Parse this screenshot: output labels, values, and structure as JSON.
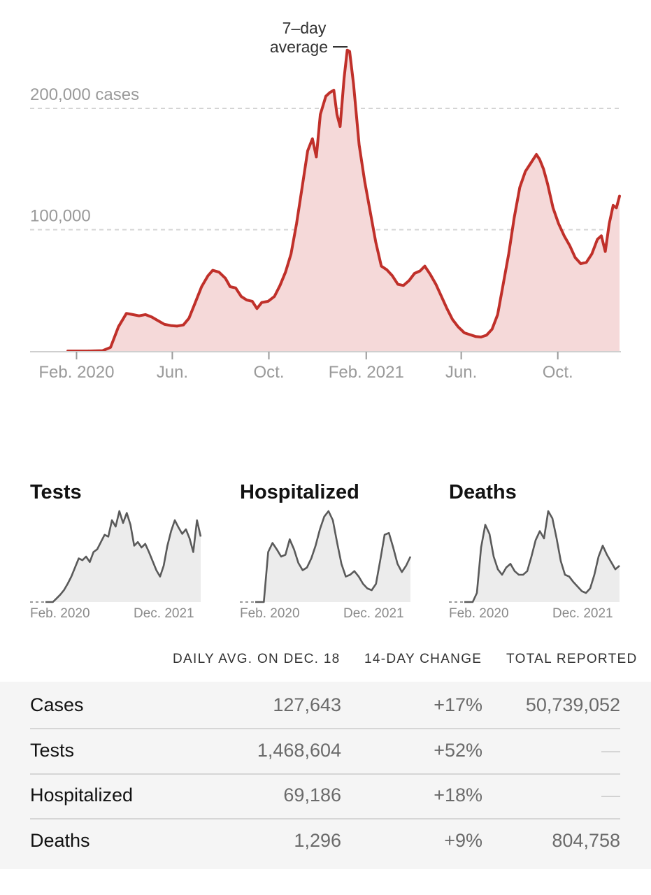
{
  "colors": {
    "cases_line": "#c0302a",
    "cases_fill": "#f5d9d9",
    "small_line": "#5a5a5a",
    "small_fill": "#ececec",
    "table_bg": "#f5f5f5",
    "axis_label": "#9a9a9a"
  },
  "chart_data": [
    {
      "type": "area",
      "title": "",
      "xlabel": "",
      "ylabel": "",
      "ylim": [
        0,
        250000
      ],
      "y_ticks": [
        {
          "value": 200000,
          "label": "200,000 cases"
        },
        {
          "value": 100000,
          "label": "100,000"
        }
      ],
      "x_ticks": [
        {
          "date": "2020-02-01",
          "label": "Feb. 2020"
        },
        {
          "date": "2020-06-01",
          "label": "Jun."
        },
        {
          "date": "2020-10-01",
          "label": "Oct."
        },
        {
          "date": "2021-02-01",
          "label": "Feb. 2021"
        },
        {
          "date": "2021-06-01",
          "label": "Jun."
        },
        {
          "date": "2021-10-01",
          "label": "Oct."
        }
      ],
      "annotation": {
        "line1": "7–day",
        "line2": "average",
        "date": "2021-01-11"
      },
      "grid": true,
      "x_range": [
        "2020-01-21",
        "2021-12-18"
      ],
      "series": [
        {
          "name": "7-day average",
          "points": [
            [
              "2020-01-21",
              0
            ],
            [
              "2020-02-15",
              0
            ],
            [
              "2020-03-05",
              300
            ],
            [
              "2020-03-15",
              3000
            ],
            [
              "2020-03-25",
              20000
            ],
            [
              "2020-04-04",
              31000
            ],
            [
              "2020-04-12",
              30000
            ],
            [
              "2020-04-20",
              29000
            ],
            [
              "2020-04-28",
              30000
            ],
            [
              "2020-05-06",
              28000
            ],
            [
              "2020-05-14",
              25000
            ],
            [
              "2020-05-22",
              22000
            ],
            [
              "2020-05-30",
              21000
            ],
            [
              "2020-06-07",
              20500
            ],
            [
              "2020-06-15",
              21500
            ],
            [
              "2020-06-22",
              27000
            ],
            [
              "2020-06-30",
              40000
            ],
            [
              "2020-07-08",
              53000
            ],
            [
              "2020-07-16",
              62000
            ],
            [
              "2020-07-22",
              66500
            ],
            [
              "2020-07-30",
              65000
            ],
            [
              "2020-08-07",
              60000
            ],
            [
              "2020-08-13",
              53000
            ],
            [
              "2020-08-20",
              52000
            ],
            [
              "2020-08-27",
              45000
            ],
            [
              "2020-09-03",
              42000
            ],
            [
              "2020-09-10",
              41000
            ],
            [
              "2020-09-16",
              35000
            ],
            [
              "2020-09-22",
              40000
            ],
            [
              "2020-09-30",
              41000
            ],
            [
              "2020-10-08",
              45000
            ],
            [
              "2020-10-15",
              54000
            ],
            [
              "2020-10-22",
              65000
            ],
            [
              "2020-10-29",
              80000
            ],
            [
              "2020-11-05",
              105000
            ],
            [
              "2020-11-12",
              135000
            ],
            [
              "2020-11-19",
              165000
            ],
            [
              "2020-11-25",
              175000
            ],
            [
              "2020-11-30",
              160000
            ],
            [
              "2020-12-05",
              195000
            ],
            [
              "2020-12-12",
              210000
            ],
            [
              "2020-12-17",
              213000
            ],
            [
              "2020-12-22",
              215000
            ],
            [
              "2020-12-26",
              195000
            ],
            [
              "2020-12-30",
              185000
            ],
            [
              "2021-01-04",
              225000
            ],
            [
              "2021-01-08",
              248000
            ],
            [
              "2021-01-11",
              247000
            ],
            [
              "2021-01-16",
              220000
            ],
            [
              "2021-01-23",
              170000
            ],
            [
              "2021-01-30",
              140000
            ],
            [
              "2021-02-06",
              115000
            ],
            [
              "2021-02-13",
              90000
            ],
            [
              "2021-02-20",
              70000
            ],
            [
              "2021-02-27",
              67000
            ],
            [
              "2021-03-06",
              62000
            ],
            [
              "2021-03-13",
              55000
            ],
            [
              "2021-03-20",
              54000
            ],
            [
              "2021-03-27",
              58000
            ],
            [
              "2021-04-03",
              64000
            ],
            [
              "2021-04-10",
              66000
            ],
            [
              "2021-04-16",
              70000
            ],
            [
              "2021-04-23",
              63000
            ],
            [
              "2021-04-30",
              55000
            ],
            [
              "2021-05-07",
              45000
            ],
            [
              "2021-05-14",
              35000
            ],
            [
              "2021-05-21",
              26000
            ],
            [
              "2021-05-28",
              20000
            ],
            [
              "2021-06-05",
              15000
            ],
            [
              "2021-06-12",
              13500
            ],
            [
              "2021-06-19",
              12000
            ],
            [
              "2021-06-26",
              11500
            ],
            [
              "2021-07-03",
              13000
            ],
            [
              "2021-07-10",
              18000
            ],
            [
              "2021-07-17",
              30000
            ],
            [
              "2021-07-24",
              55000
            ],
            [
              "2021-07-31",
              80000
            ],
            [
              "2021-08-07",
              110000
            ],
            [
              "2021-08-14",
              135000
            ],
            [
              "2021-08-21",
              148000
            ],
            [
              "2021-08-28",
              155000
            ],
            [
              "2021-09-04",
              162000
            ],
            [
              "2021-09-08",
              158000
            ],
            [
              "2021-09-13",
              150000
            ],
            [
              "2021-09-18",
              138000
            ],
            [
              "2021-09-25",
              118000
            ],
            [
              "2021-10-02",
              105000
            ],
            [
              "2021-10-09",
              95000
            ],
            [
              "2021-10-16",
              87000
            ],
            [
              "2021-10-23",
              77000
            ],
            [
              "2021-10-30",
              72000
            ],
            [
              "2021-11-06",
              73000
            ],
            [
              "2021-11-13",
              80000
            ],
            [
              "2021-11-20",
              92000
            ],
            [
              "2021-11-25",
              95000
            ],
            [
              "2021-11-30",
              82000
            ],
            [
              "2021-12-05",
              105000
            ],
            [
              "2021-12-10",
              120000
            ],
            [
              "2021-12-14",
              118000
            ],
            [
              "2021-12-18",
              127643
            ]
          ]
        }
      ]
    },
    {
      "type": "area",
      "title": "Tests",
      "x_ticks": [
        "Feb. 2020",
        "Dec. 2021"
      ],
      "series": [
        {
          "values": [
            0,
            0,
            0,
            0.04,
            0.08,
            0.13,
            0.2,
            0.28,
            0.38,
            0.48,
            0.46,
            0.5,
            0.44,
            0.55,
            0.58,
            0.66,
            0.74,
            0.72,
            0.9,
            0.83,
            1.0,
            0.87,
            0.98,
            0.85,
            0.62,
            0.66,
            0.6,
            0.64,
            0.55,
            0.45,
            0.35,
            0.28,
            0.4,
            0.62,
            0.78,
            0.9,
            0.82,
            0.75,
            0.8,
            0.7,
            0.55,
            0.9,
            0.72
          ]
        }
      ]
    },
    {
      "type": "area",
      "title": "Hospitalized",
      "x_ticks": [
        "Feb. 2020",
        "Dec. 2021"
      ],
      "series": [
        {
          "values": [
            0,
            0,
            0,
            0.55,
            0.65,
            0.58,
            0.5,
            0.52,
            0.69,
            0.58,
            0.43,
            0.35,
            0.38,
            0.48,
            0.62,
            0.8,
            0.94,
            1.0,
            0.9,
            0.65,
            0.42,
            0.28,
            0.3,
            0.34,
            0.28,
            0.2,
            0.15,
            0.13,
            0.2,
            0.46,
            0.74,
            0.76,
            0.6,
            0.42,
            0.33,
            0.4,
            0.5
          ]
        }
      ]
    },
    {
      "type": "area",
      "title": "Deaths",
      "x_ticks": [
        "Feb. 2020",
        "Dec. 2021"
      ],
      "series": [
        {
          "values": [
            0,
            0,
            0,
            0.1,
            0.6,
            0.85,
            0.75,
            0.5,
            0.36,
            0.3,
            0.38,
            0.42,
            0.34,
            0.3,
            0.3,
            0.34,
            0.5,
            0.68,
            0.78,
            0.7,
            1.0,
            0.92,
            0.7,
            0.45,
            0.3,
            0.28,
            0.22,
            0.17,
            0.12,
            0.1,
            0.15,
            0.3,
            0.5,
            0.62,
            0.52,
            0.44,
            0.36,
            0.4
          ]
        }
      ]
    }
  ],
  "small_charts": [
    {
      "title": "Tests",
      "x_start": "Feb. 2020",
      "x_end": "Dec. 2021"
    },
    {
      "title": "Hospitalized",
      "x_start": "Feb. 2020",
      "x_end": "Dec. 2021"
    },
    {
      "title": "Deaths",
      "x_start": "Feb. 2020",
      "x_end": "Dec. 2021"
    }
  ],
  "stats": {
    "headers": {
      "daily_avg": "DAILY AVG. ON DEC. 18",
      "change": "14-DAY CHANGE",
      "total": "TOTAL REPORTED"
    },
    "rows": [
      {
        "name": "Cases",
        "daily_avg": "127,643",
        "change": "+17%",
        "total": "50,739,052"
      },
      {
        "name": "Tests",
        "daily_avg": "1,468,604",
        "change": "+52%",
        "total": "—"
      },
      {
        "name": "Hospitalized",
        "daily_avg": "69,186",
        "change": "+18%",
        "total": "—"
      },
      {
        "name": "Deaths",
        "daily_avg": "1,296",
        "change": "+9%",
        "total": "804,758"
      }
    ]
  }
}
